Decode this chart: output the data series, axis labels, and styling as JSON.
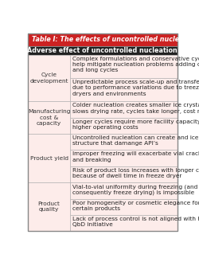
{
  "title": "Table I: The effects of uncontrolled nucleation.",
  "subtitle": "Adverse effect of uncontrolled nucleation",
  "title_bg": "#cc2222",
  "subtitle_bg": "#222222",
  "title_color": "#ffffff",
  "subtitle_color": "#ffffff",
  "row_bg": "#fdecea",
  "border_color": "#b0a0a0",
  "category_color": "#333333",
  "text_color": "#222222",
  "col_split": 0.285,
  "category_spans": [
    {
      "label": "Cycle\ndevelopment",
      "start": 0,
      "end": 1
    },
    {
      "label": "Manufacturing\ncost &\ncapacity",
      "start": 2,
      "end": 3
    },
    {
      "label": "Product yield",
      "start": 4,
      "end": 6
    },
    {
      "label": "Product\nquality",
      "start": 7,
      "end": 9
    }
  ],
  "rows": [
    "Complex formulations and conservative cycles\nhelp mitigate nucleation problems adding costs\nand long cycles",
    "Unpredictable process scale-up and transfer\ndue to performance variations due to treeze\ndryers and environments",
    "Colder nucleation creates smaller ice crystals –\nslows drying rate, cycles take longer, cost more",
    "Longer cycles require more facility capacity and\nhigher operating costs",
    "Uncontrolled nucleation can create and ice\nstructure that damange API’s",
    "Improper freezing will exacerbate vial cracking\nand breaking",
    "Risk of product loss increases with longer cycles\nbecause of dwell time in freeze dryer",
    "Vial-to-vial uniformity during freezing (and\nconsequently freeze drying) is impossible",
    "Poor homogeneity or cosmetic elegance for\ncertain products",
    "Lack of process control is not aligned with FDA,\nQbD initiative"
  ],
  "row_line_counts": [
    3,
    3,
    2,
    2,
    2,
    2,
    2,
    2,
    2,
    2
  ],
  "title_fontsize": 5.8,
  "subtitle_fontsize": 5.8,
  "cat_fontsize": 5.3,
  "cell_fontsize": 5.3
}
